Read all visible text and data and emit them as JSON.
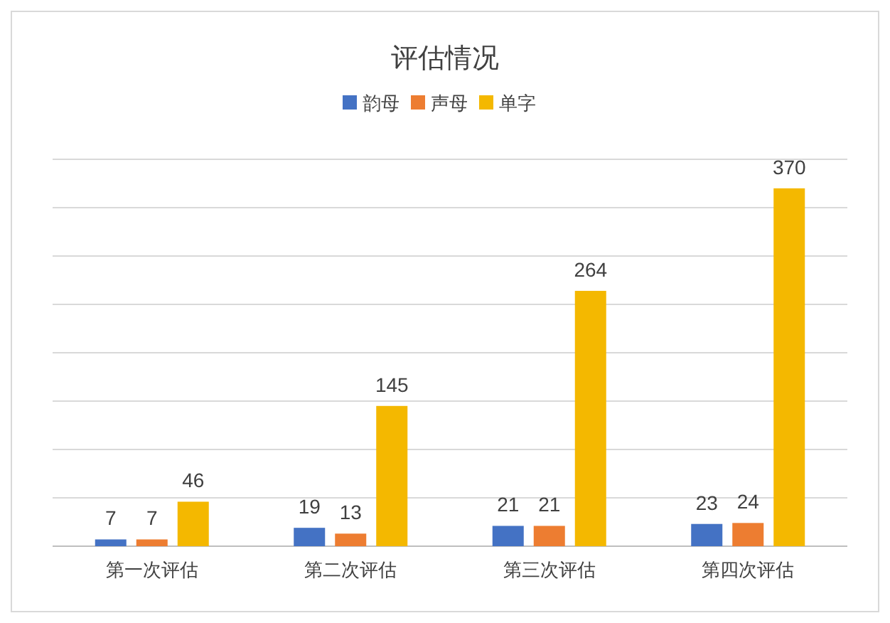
{
  "chart_data": {
    "type": "bar",
    "title": "评估情况",
    "categories": [
      "第一次评估",
      "第二次评估",
      "第三次评估",
      "第四次评估"
    ],
    "series": [
      {
        "name": "韵母",
        "color": "#4472c4",
        "values": [
          7,
          19,
          21,
          23
        ]
      },
      {
        "name": "声母",
        "color": "#ed7d31",
        "values": [
          7,
          13,
          21,
          24
        ]
      },
      {
        "name": "单字",
        "color": "#f4b800",
        "values": [
          46,
          145,
          264,
          370
        ]
      }
    ],
    "ylim": [
      0,
      400
    ],
    "yticks": [
      {
        "value": 0,
        "label": null
      },
      {
        "value": 50,
        "label": null
      },
      {
        "value": 100,
        "label": null
      },
      {
        "value": 150,
        "label": null
      },
      {
        "value": 200,
        "label": null
      },
      {
        "value": 250,
        "label": null
      },
      {
        "value": 300,
        "label": null
      },
      {
        "value": 350,
        "label": null
      },
      {
        "value": 400,
        "label": null
      }
    ],
    "tick_labels": "x",
    "grid": "y",
    "legend": "top",
    "data_labels": true
  }
}
